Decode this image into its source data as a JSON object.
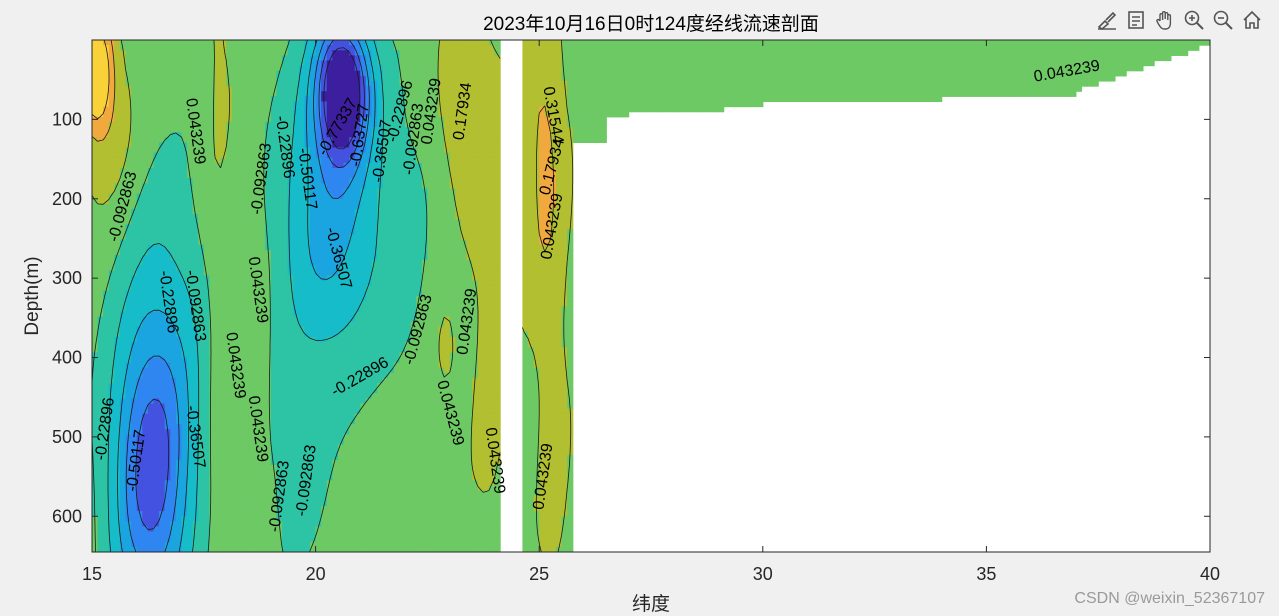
{
  "chart_data": {
    "type": "contour",
    "title": "2023年10月16日0时124度经线流速剖面",
    "xlabel": "纬度",
    "ylabel": "Depth(m)",
    "xlim": [
      15,
      40
    ],
    "ylim": [
      0,
      645
    ],
    "y_reversed": true,
    "xticks": [
      "15",
      "20",
      "25",
      "30",
      "35",
      "40"
    ],
    "yticks": [
      "100",
      "200",
      "300",
      "400",
      "500",
      "600"
    ],
    "contour_levels": [
      -0.77337,
      -0.63727,
      -0.50117,
      -0.36507,
      -0.22896,
      -0.092863,
      0.043239,
      0.17934,
      0.31544
    ],
    "level_colors": [
      "#3c1f9e",
      "#4353e0",
      "#2f86f0",
      "#1aa5e0",
      "#17bcc9",
      "#2cc4a4",
      "#6dc964",
      "#b1bf31",
      "#f1a93f",
      "#f9d23a",
      "#f8f82a"
    ],
    "contour_labels": [
      {
        "text": "-0.092863",
        "x": 15.7,
        "y": 210,
        "angle": -75
      },
      {
        "text": "0.043239",
        "x": 17.3,
        "y": 115,
        "angle": 82
      },
      {
        "text": "-0.22896",
        "x": 16.7,
        "y": 330,
        "angle": 82
      },
      {
        "text": "-0.092863",
        "x": 17.3,
        "y": 335,
        "angle": 82
      },
      {
        "text": "-0.22896",
        "x": 15.3,
        "y": 490,
        "angle": -82
      },
      {
        "text": "-0.50117",
        "x": 16.0,
        "y": 530,
        "angle": -82
      },
      {
        "text": "-0.36507",
        "x": 17.3,
        "y": 500,
        "angle": 82
      },
      {
        "text": "0.043239",
        "x": 18.2,
        "y": 410,
        "angle": 82
      },
      {
        "text": "0.043239",
        "x": 18.7,
        "y": 490,
        "angle": 82
      },
      {
        "text": "0.043239",
        "x": 18.7,
        "y": 315,
        "angle": 82
      },
      {
        "text": "-0.092863",
        "x": 18.8,
        "y": 175,
        "angle": -82
      },
      {
        "text": "-0.22896",
        "x": 19.3,
        "y": 135,
        "angle": 82
      },
      {
        "text": "-0.50117",
        "x": 19.8,
        "y": 175,
        "angle": 82
      },
      {
        "text": "-0.77337",
        "x": 20.5,
        "y": 110,
        "angle": -60
      },
      {
        "text": "-0.63727",
        "x": 21.0,
        "y": 120,
        "angle": -82
      },
      {
        "text": "-0.36507",
        "x": 21.5,
        "y": 140,
        "angle": -82
      },
      {
        "text": "-0.22896",
        "x": 21.9,
        "y": 90,
        "angle": -75
      },
      {
        "text": "-0.36507",
        "x": 20.5,
        "y": 275,
        "angle": 75
      },
      {
        "text": "-0.092863",
        "x": 22.2,
        "y": 125,
        "angle": -82
      },
      {
        "text": "0.043239",
        "x": 22.6,
        "y": 90,
        "angle": -82
      },
      {
        "text": "0.17934",
        "x": 23.3,
        "y": 90,
        "angle": -82
      },
      {
        "text": "-0.22896",
        "x": 21.0,
        "y": 425,
        "angle": -30
      },
      {
        "text": "-0.092863",
        "x": 22.3,
        "y": 365,
        "angle": -75
      },
      {
        "text": "0.043239",
        "x": 23.4,
        "y": 355,
        "angle": -82
      },
      {
        "text": "0.043239",
        "x": 23.0,
        "y": 470,
        "angle": 75
      },
      {
        "text": "0.043239",
        "x": 24.0,
        "y": 530,
        "angle": 82
      },
      {
        "text": "-0.092863",
        "x": 19.2,
        "y": 575,
        "angle": -82
      },
      {
        "text": "-0.092863",
        "x": 19.8,
        "y": 555,
        "angle": -82
      },
      {
        "text": "0.31544",
        "x": 25.3,
        "y": 95,
        "angle": 80
      },
      {
        "text": "0.17934",
        "x": 25.3,
        "y": 160,
        "angle": -75
      },
      {
        "text": "0.043239",
        "x": 25.3,
        "y": 235,
        "angle": -80
      },
      {
        "text": "0.043239",
        "x": 25.1,
        "y": 550,
        "angle": -82
      },
      {
        "text": "0.043239",
        "x": 36.8,
        "y": 40,
        "angle": -10
      }
    ],
    "grid": false,
    "legend": "none"
  },
  "toolbar": {
    "icons": [
      "brush-icon",
      "datatip-icon",
      "pan-icon",
      "zoom-in-icon",
      "zoom-out-icon",
      "home-icon"
    ]
  },
  "watermark": "CSDN @weixin_52367107"
}
